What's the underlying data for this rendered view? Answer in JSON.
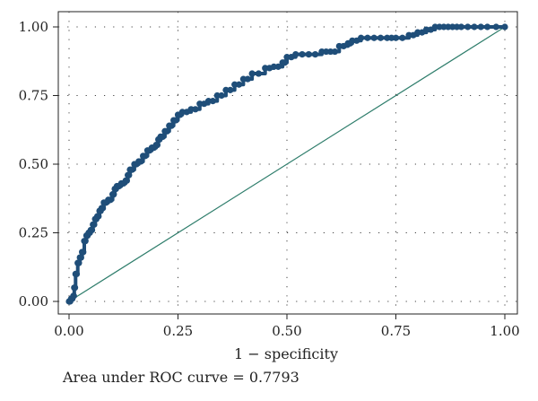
{
  "chart_data": {
    "type": "line",
    "xlabel": "1 − specificity",
    "ylabel": "",
    "xlim": [
      0,
      1
    ],
    "ylim": [
      0,
      1
    ],
    "x_ticks": [
      "0.00",
      "0.25",
      "0.50",
      "0.75",
      "1.00"
    ],
    "y_ticks": [
      "0.00",
      "0.25",
      "0.50",
      "0.75",
      "1.00"
    ],
    "grid": "dotted",
    "annotation": "Area under ROC curve = 0.7793",
    "colors": {
      "roc": "#1f4e79",
      "reference": "#2e7d6b"
    },
    "series": [
      {
        "x": [
          0.0,
          0.005,
          0.01,
          0.012,
          0.015,
          0.02,
          0.025,
          0.03,
          0.035,
          0.04,
          0.045,
          0.05,
          0.055,
          0.06,
          0.065,
          0.07,
          0.075,
          0.08,
          0.09,
          0.1,
          0.105,
          0.11,
          0.12,
          0.13,
          0.135,
          0.14,
          0.15,
          0.16,
          0.17,
          0.18,
          0.19,
          0.2,
          0.205,
          0.21,
          0.22,
          0.23,
          0.24,
          0.25,
          0.26,
          0.28,
          0.3,
          0.32,
          0.34,
          0.36,
          0.38,
          0.4,
          0.42,
          0.45,
          0.47,
          0.49,
          0.5,
          0.52,
          0.55,
          0.58,
          0.6,
          0.62,
          0.64,
          0.65,
          0.67,
          0.7,
          0.73,
          0.75,
          0.78,
          0.8,
          0.82,
          0.84,
          0.86,
          0.88,
          0.9,
          0.93,
          0.96,
          1.0
        ],
        "y": [
          0.0,
          0.01,
          0.02,
          0.05,
          0.1,
          0.14,
          0.16,
          0.18,
          0.22,
          0.24,
          0.25,
          0.26,
          0.28,
          0.3,
          0.31,
          0.33,
          0.34,
          0.36,
          0.37,
          0.39,
          0.41,
          0.42,
          0.43,
          0.44,
          0.46,
          0.48,
          0.5,
          0.51,
          0.53,
          0.55,
          0.56,
          0.57,
          0.59,
          0.6,
          0.62,
          0.64,
          0.66,
          0.68,
          0.69,
          0.7,
          0.72,
          0.73,
          0.75,
          0.77,
          0.79,
          0.81,
          0.83,
          0.85,
          0.855,
          0.87,
          0.89,
          0.9,
          0.9,
          0.91,
          0.91,
          0.93,
          0.94,
          0.95,
          0.96,
          0.96,
          0.96,
          0.96,
          0.97,
          0.98,
          0.99,
          1.0,
          1.0,
          1.0,
          1.0,
          1.0,
          1.0,
          1.0
        ]
      }
    ]
  }
}
